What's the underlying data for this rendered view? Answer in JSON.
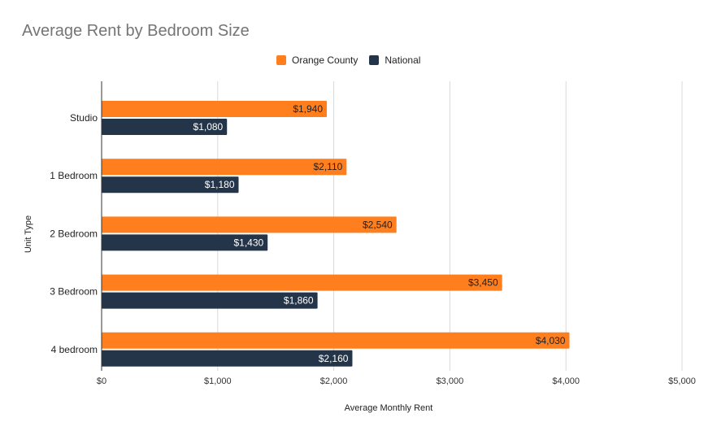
{
  "chart_data": {
    "type": "bar",
    "orientation": "horizontal",
    "title": "Average Rent by Bedroom Size",
    "xlabel": "Average Monthly Rent",
    "ylabel": "Unit Type",
    "categories": [
      "Studio",
      "1 Bedroom",
      "2 Bedroom",
      "3 Bedroom",
      "4 bedroom"
    ],
    "series": [
      {
        "name": "Orange County",
        "color": "#ff7f1e",
        "values": [
          1940,
          2110,
          2540,
          3450,
          4030
        ],
        "labels": [
          "$1,940",
          "$2,110",
          "$2,540",
          "$3,450",
          "$4,030"
        ]
      },
      {
        "name": "National",
        "color": "#253549",
        "values": [
          1080,
          1180,
          1430,
          1860,
          2160
        ],
        "labels": [
          "$1,080",
          "$1,180",
          "$1,430",
          "$1,860",
          "$2,160"
        ]
      }
    ],
    "xlim": [
      0,
      5000
    ],
    "xticks": [
      0,
      1000,
      2000,
      3000,
      4000,
      5000
    ],
    "xtick_labels": [
      "$0",
      "$1,000",
      "$2,000",
      "$3,000",
      "$4,000",
      "$5,000"
    ],
    "grid": true,
    "legend_position": "top"
  }
}
